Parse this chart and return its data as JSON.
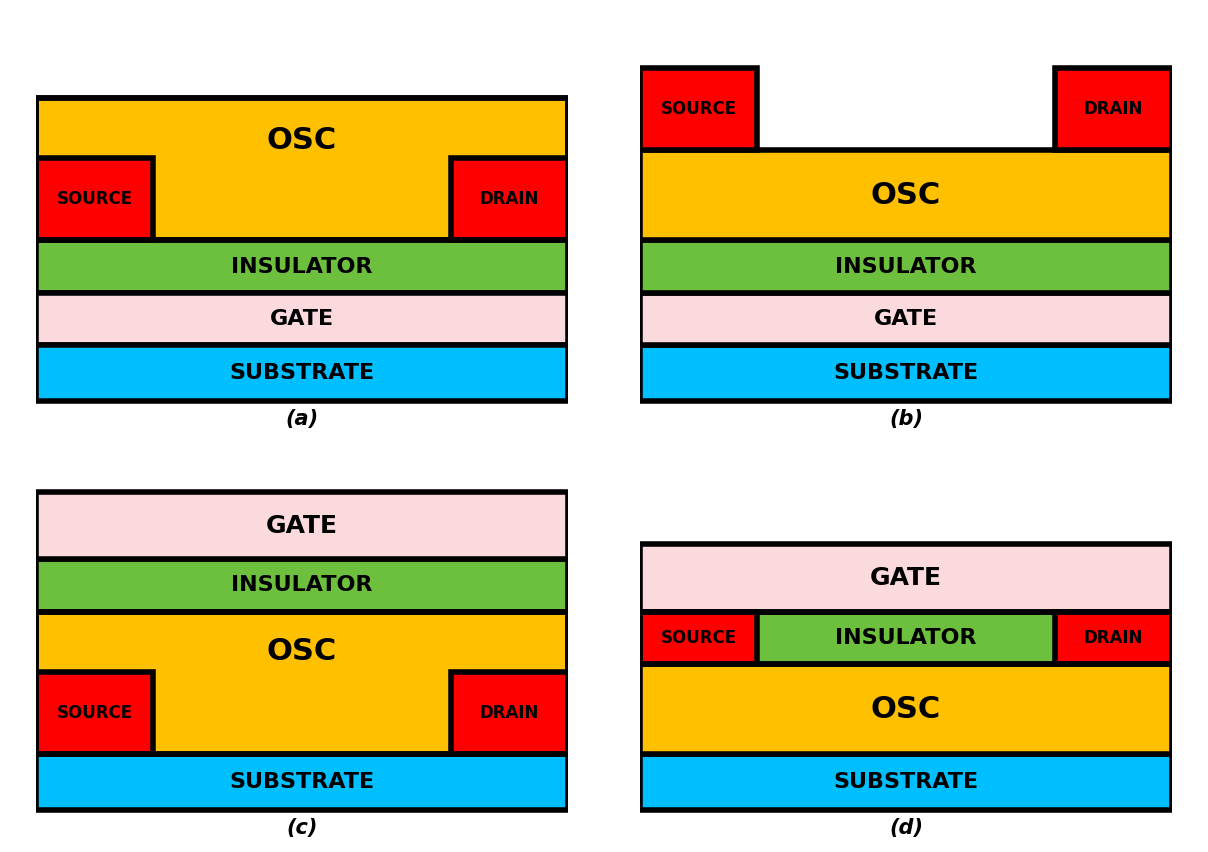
{
  "colors": {
    "substrate": "#00BFFF",
    "gate": "#FADADD",
    "insulator": "#6DBF3E",
    "osc": "#FFC000",
    "source_drain": "#FF0000",
    "white": "#FFFFFF",
    "black": "#000000"
  },
  "border_lw": 4,
  "diagrams": [
    "a",
    "b",
    "c",
    "d"
  ]
}
